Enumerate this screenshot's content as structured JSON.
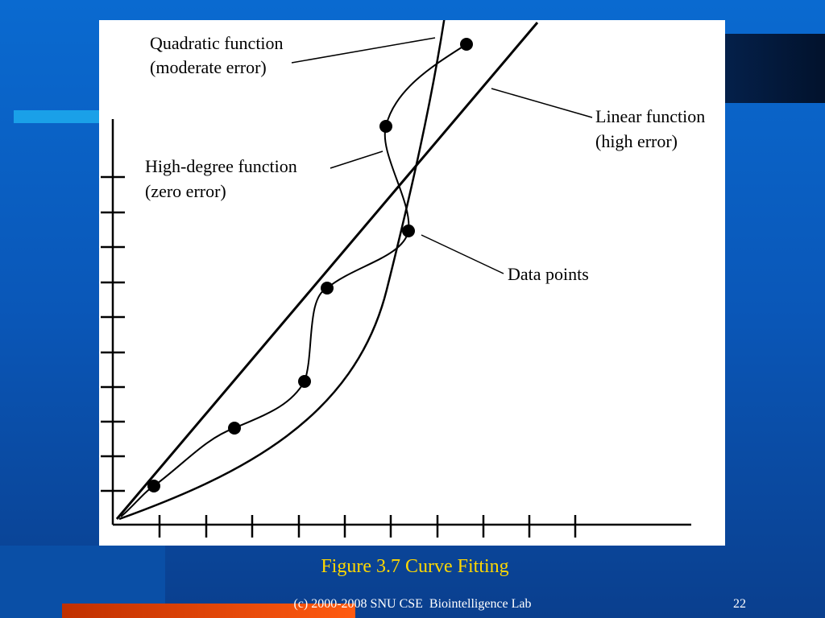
{
  "figure": {
    "labels": {
      "quadratic": [
        "Quadratic function",
        "(moderate error)"
      ],
      "linear": [
        "Linear function",
        "(high error)"
      ],
      "high_degree": [
        "High-degree function",
        "(zero error)"
      ],
      "data_points": "Data points"
    }
  },
  "caption": "Figure 3.7 Curve Fitting",
  "footer": {
    "text": "(c) 2000-2008 SNU CSE  Biointelligence Lab",
    "page": "22"
  }
}
